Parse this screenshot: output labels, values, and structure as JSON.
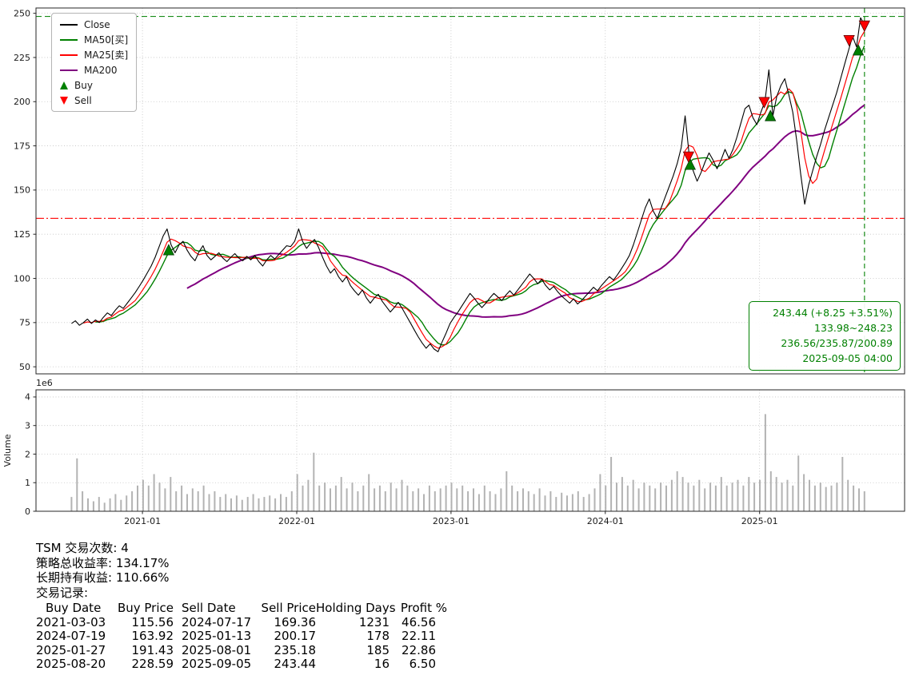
{
  "legend": {
    "items": [
      {
        "label": "Close",
        "color": "#000000",
        "type": "line"
      },
      {
        "label": "MA50[买]",
        "color": "#008000",
        "type": "line"
      },
      {
        "label": "MA25[卖]",
        "color": "#ff0000",
        "type": "line"
      },
      {
        "label": "MA200",
        "color": "#800080",
        "type": "line"
      },
      {
        "label": "Buy",
        "color": "#008000",
        "type": "triangle-up"
      },
      {
        "label": "Sell",
        "color": "#ff0000",
        "type": "triangle-down"
      }
    ]
  },
  "annotation": {
    "color": "#008000",
    "lines": [
      "243.44 (+8.25 +3.51%)",
      "133.98~248.23",
      "236.56/235.87/200.89",
      "2025-09-05 04:00"
    ]
  },
  "summary": {
    "lines": [
      "TSM 交易次数: 4",
      "策略总收益率: 134.17%",
      "长期持有收益: 110.66%",
      "交易记录:"
    ]
  },
  "trades": {
    "headers": [
      "Buy Date",
      "Buy Price",
      "Sell Date",
      "Sell Price",
      "Holding Days",
      "Profit %"
    ],
    "rows": [
      [
        "2021-03-03",
        "115.56",
        "2024-07-17",
        "169.36",
        "1231",
        "46.56"
      ],
      [
        "2024-07-19",
        "163.92",
        "2025-01-13",
        "200.17",
        "178",
        "22.11"
      ],
      [
        "2025-01-27",
        "191.43",
        "2025-08-01",
        "235.18",
        "185",
        "22.86"
      ],
      [
        "2025-08-20",
        "228.59",
        "2025-09-05",
        "243.44",
        "16",
        "6.50"
      ]
    ]
  },
  "chart_data": {
    "type": "line",
    "title": "",
    "symbol": "TSM",
    "x_unit": "decimal_year",
    "x_range": [
      2020.31,
      2025.94
    ],
    "x_ticks": [
      {
        "x": 2021.0,
        "label": "2021-01"
      },
      {
        "x": 2022.0,
        "label": "2022-01"
      },
      {
        "x": 2023.0,
        "label": "2023-01"
      },
      {
        "x": 2024.0,
        "label": "2024-01"
      },
      {
        "x": 2025.0,
        "label": "2025-01"
      }
    ],
    "price_axis": {
      "ticks": [
        50,
        75,
        100,
        125,
        150,
        175,
        200,
        225,
        250
      ],
      "range": [
        46,
        253
      ]
    },
    "volume_axis": {
      "ticks": [
        0,
        1,
        2,
        3,
        4
      ],
      "range": [
        0,
        4.25
      ],
      "scale_label": "1e6",
      "ylabel": "Volume"
    },
    "reference_lines": {
      "high_line": {
        "value": 248.23,
        "color": "#008000",
        "style": "dashed"
      },
      "low_line": {
        "value": 133.98,
        "color": "#ff0000",
        "style": "dashdot"
      },
      "current_vline": {
        "x": 2025.68,
        "date": "2025-09-05",
        "color": "#008000",
        "style": "dashed"
      }
    },
    "series": {
      "close": {
        "name": "Close",
        "color": "#000000",
        "x_start": 2020.54,
        "x_end": 2025.68,
        "values": [
          74.5,
          76,
          73.5,
          75,
          77,
          74.5,
          76.5,
          75,
          78,
          80.5,
          79,
          82,
          84.5,
          83,
          86,
          89,
          92,
          95.5,
          99,
          103,
          107,
          112,
          118,
          124,
          128,
          119,
          114.5,
          119,
          121,
          116,
          112.5,
          110,
          115,
          118.5,
          113,
          110.5,
          112.5,
          114.5,
          111.5,
          109.5,
          112,
          114,
          111.5,
          110,
          112.5,
          110.5,
          113,
          109.5,
          107,
          110.5,
          113,
          111,
          113.5,
          116,
          118.5,
          118,
          121,
          128,
          121,
          117,
          120,
          122,
          117.5,
          112,
          107,
          103,
          105.5,
          101,
          98,
          101,
          96,
          93,
          90.5,
          93.5,
          89,
          86,
          89,
          91,
          87,
          84,
          81,
          83.5,
          86.5,
          83,
          79,
          75,
          71,
          67,
          63.5,
          60.5,
          63,
          60,
          58.5,
          64,
          69,
          74.5,
          78,
          81,
          84.5,
          88,
          91.5,
          89,
          86,
          83.5,
          86,
          89,
          91.5,
          89.5,
          87.5,
          90.5,
          93,
          90.5,
          93.5,
          96.5,
          99.5,
          102.5,
          100,
          97,
          99.5,
          96,
          93.5,
          95.5,
          92.5,
          90,
          88,
          86,
          88.5,
          85.5,
          87.5,
          90,
          92.5,
          95,
          93,
          96,
          98.5,
          101,
          99,
          102,
          105.5,
          109,
          113,
          119,
          126,
          133,
          140,
          145,
          138,
          134,
          140,
          146,
          152,
          158,
          165,
          174,
          192,
          170,
          161,
          155,
          160,
          166,
          171,
          167,
          162,
          167,
          173,
          168,
          173,
          180,
          188,
          196,
          198,
          191,
          187,
          194,
          200,
          218,
          192,
          203,
          209,
          213,
          204,
          194,
          178,
          159,
          142,
          153,
          161,
          169,
          176,
          184,
          191,
          198,
          205,
          213,
          221,
          229,
          237,
          231,
          247.5,
          243.44
        ]
      },
      "ma25": {
        "name": "MA25[卖]",
        "color": "#ff0000",
        "period": 25,
        "last_value": 235.87
      },
      "ma50": {
        "name": "MA50[买]",
        "color": "#008000",
        "period": 50,
        "last_value": 236.56
      },
      "ma200": {
        "name": "MA200",
        "color": "#800080",
        "period": 200,
        "last_value": 200.89
      }
    },
    "volume": {
      "color": "#a6a6a6",
      "unit": "1e6",
      "x_start": 2020.54,
      "x_end": 2025.68,
      "values": [
        0.5,
        1.85,
        0.7,
        0.45,
        0.35,
        0.5,
        0.3,
        0.45,
        0.6,
        0.4,
        0.55,
        0.7,
        0.9,
        1.1,
        0.9,
        1.3,
        1.0,
        0.8,
        1.2,
        0.7,
        0.9,
        0.6,
        0.8,
        0.7,
        0.9,
        0.6,
        0.7,
        0.5,
        0.6,
        0.45,
        0.55,
        0.4,
        0.5,
        0.6,
        0.45,
        0.5,
        0.55,
        0.45,
        0.6,
        0.5,
        0.7,
        1.3,
        0.9,
        1.1,
        2.05,
        0.9,
        1.0,
        0.8,
        0.9,
        1.2,
        0.8,
        1.0,
        0.7,
        0.9,
        1.3,
        0.8,
        0.9,
        0.7,
        1.0,
        0.8,
        1.1,
        0.9,
        0.7,
        0.8,
        0.6,
        0.9,
        0.7,
        0.8,
        0.9,
        1.0,
        0.8,
        0.9,
        0.7,
        0.8,
        0.6,
        0.9,
        0.7,
        0.6,
        0.8,
        1.4,
        0.9,
        0.7,
        0.8,
        0.7,
        0.6,
        0.8,
        0.55,
        0.7,
        0.5,
        0.65,
        0.55,
        0.6,
        0.7,
        0.5,
        0.6,
        0.8,
        1.3,
        0.9,
        1.9,
        1.0,
        1.2,
        0.9,
        1.1,
        0.8,
        1.0,
        0.9,
        0.8,
        1.0,
        0.9,
        1.1,
        1.4,
        1.2,
        1.0,
        0.9,
        1.1,
        0.8,
        1.0,
        0.9,
        1.2,
        0.9,
        1.0,
        1.1,
        0.9,
        1.2,
        1.0,
        1.1,
        3.4,
        1.4,
        1.2,
        1.0,
        1.1,
        0.9,
        1.95,
        1.3,
        1.1,
        0.9,
        1.0,
        0.85,
        0.9,
        1.0,
        1.9,
        1.1,
        0.9,
        0.8,
        0.7
      ]
    },
    "markers": {
      "buy_color": "#008000",
      "sell_color": "#ff0000",
      "buys": [
        {
          "date": "2021-03-03",
          "x": 2021.17,
          "price": 115.56
        },
        {
          "date": "2024-07-19",
          "x": 2024.55,
          "price": 163.92
        },
        {
          "date": "2025-01-27",
          "x": 2025.07,
          "price": 191.43
        },
        {
          "date": "2025-08-20",
          "x": 2025.64,
          "price": 228.59
        }
      ],
      "sells": [
        {
          "date": "2024-07-17",
          "x": 2024.54,
          "price": 169.36
        },
        {
          "date": "2025-01-13",
          "x": 2025.03,
          "price": 200.17
        },
        {
          "date": "2025-08-01",
          "x": 2025.58,
          "price": 235.18
        },
        {
          "date": "2025-09-05",
          "x": 2025.68,
          "price": 243.44
        }
      ]
    }
  }
}
